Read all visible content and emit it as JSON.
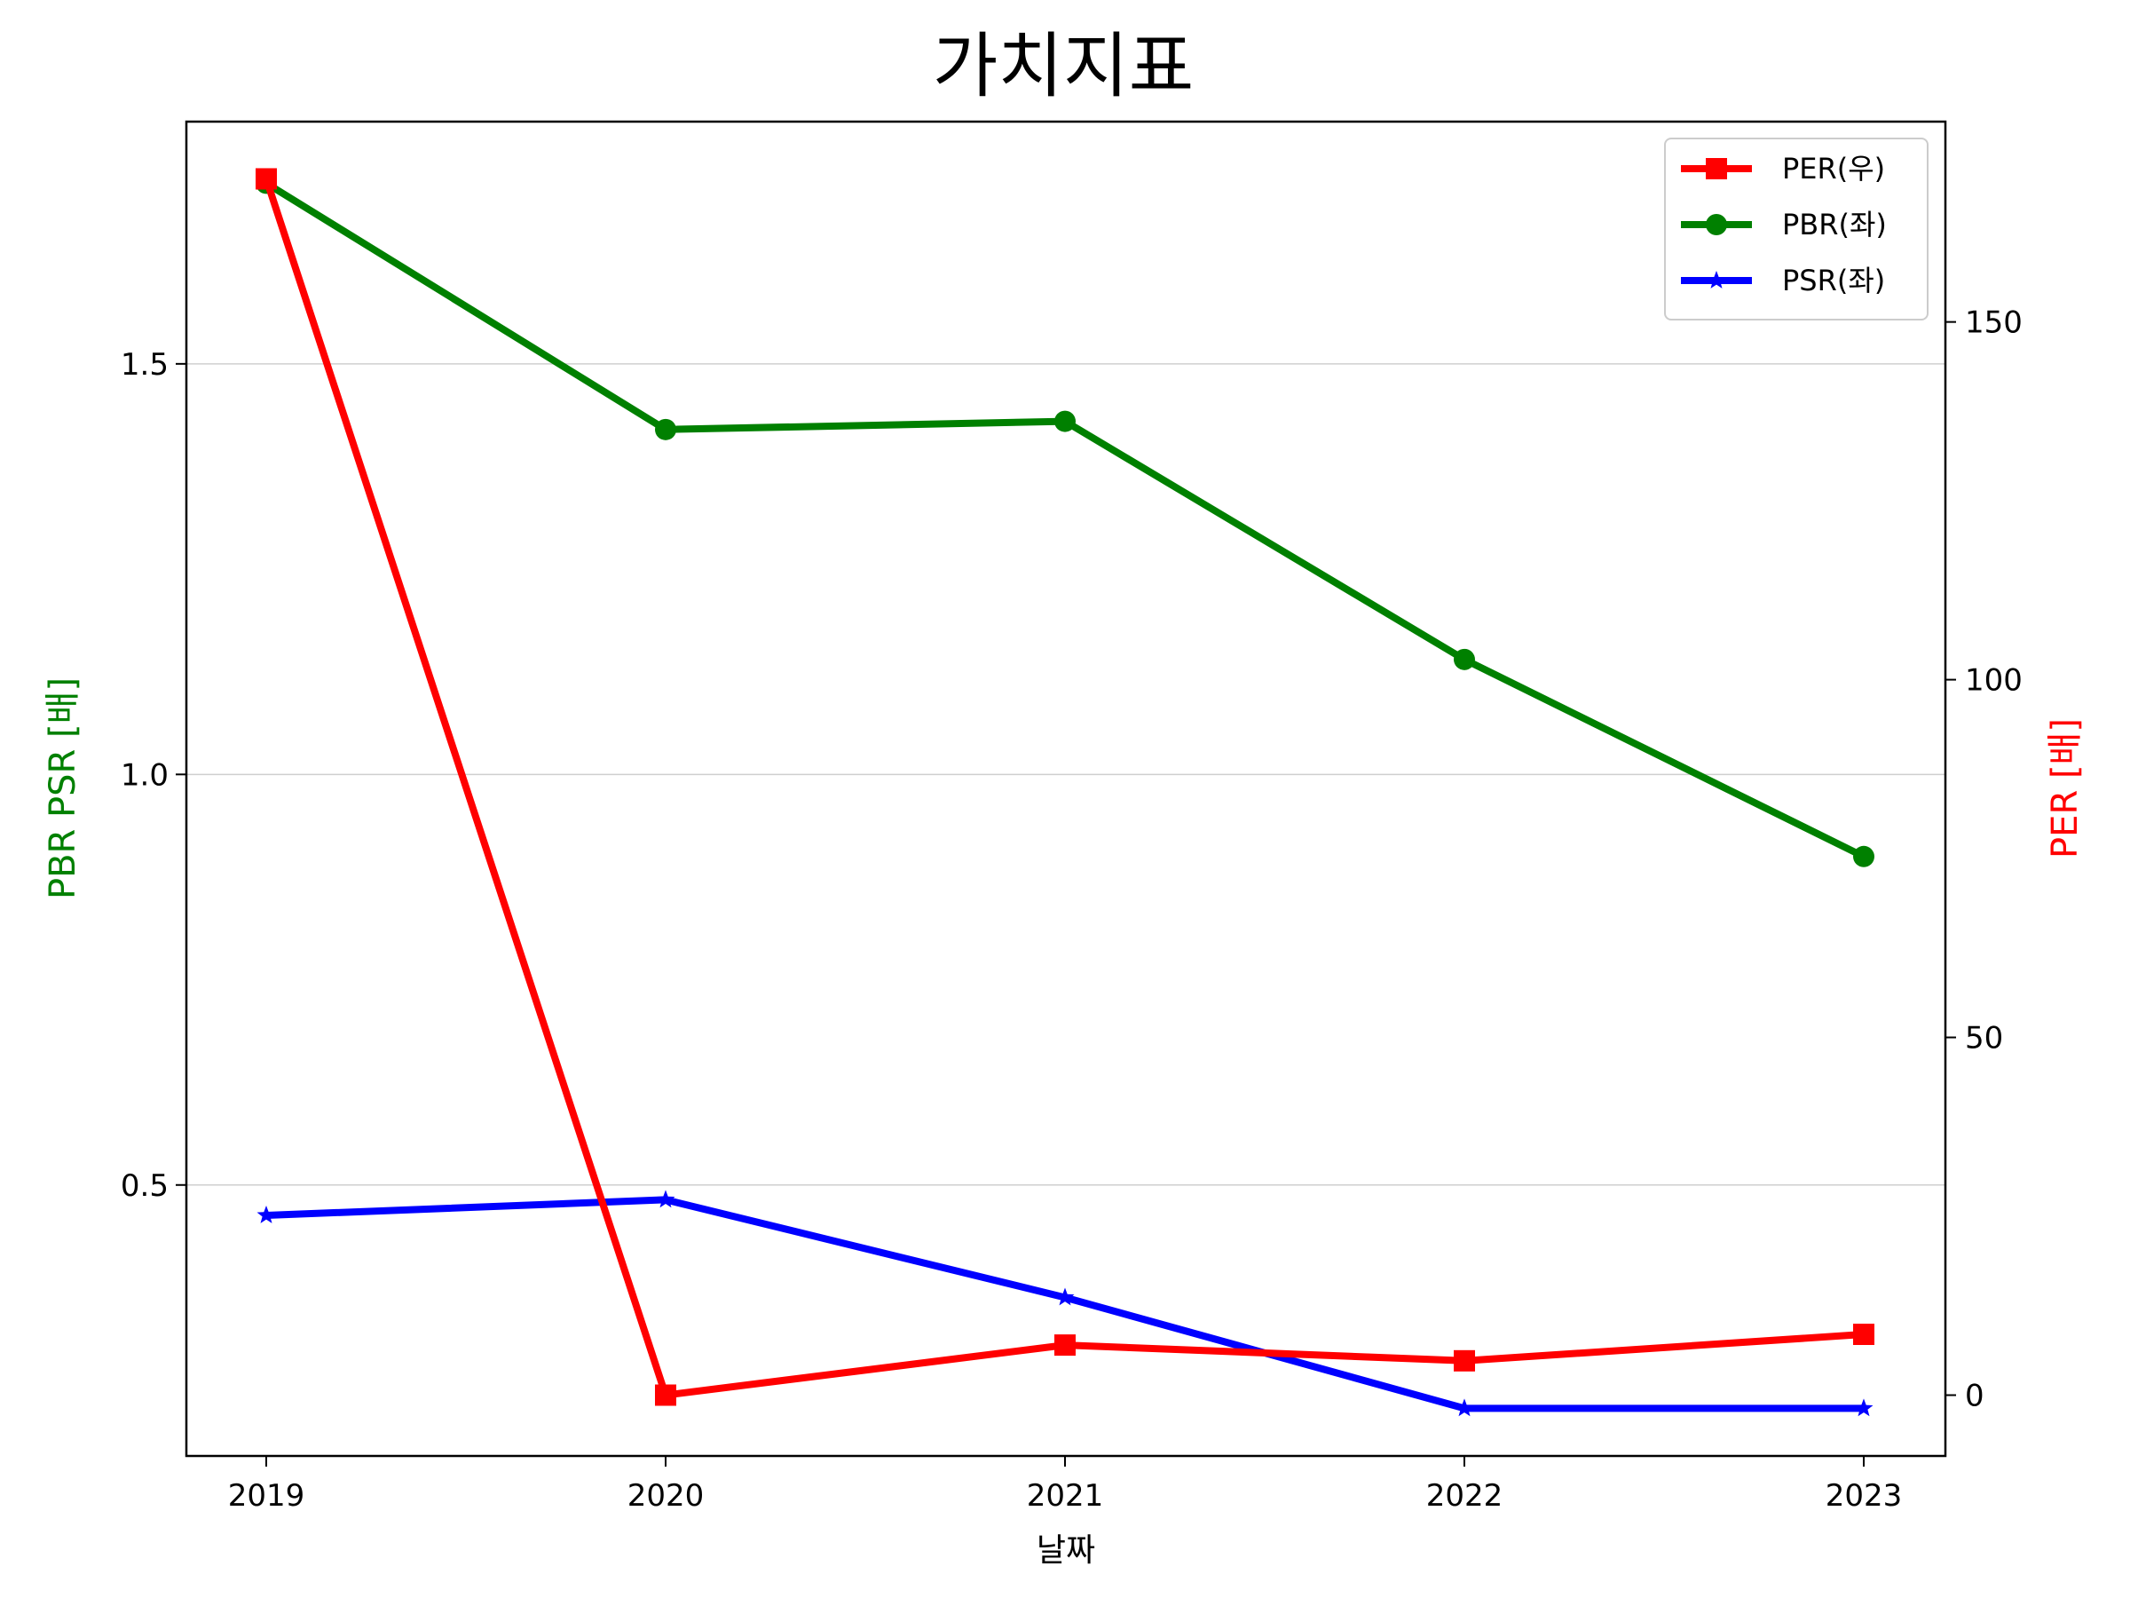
{
  "chart_data": {
    "type": "line",
    "title": "가치지표",
    "xlabel": "날짜",
    "ylabel_left": "PBR PSR [배]",
    "ylabel_right": "PER [배]",
    "ylabel_left_color": "#008000",
    "ylabel_right_color": "#ff0000",
    "categories": [
      "2019",
      "2020",
      "2021",
      "2022",
      "2023"
    ],
    "ylim_left": [
      0.17,
      1.795
    ],
    "ylim_right": [
      -8.5,
      178
    ],
    "yticks_left": [
      0.5,
      1.0,
      1.5
    ],
    "yticks_left_labels": [
      "0.5",
      "1.0",
      "1.5"
    ],
    "yticks_right": [
      0,
      50,
      100,
      150
    ],
    "yticks_right_labels": [
      "0",
      "50",
      "100",
      "150"
    ],
    "grid": "horizontal",
    "legend_position": "top-right",
    "series": [
      {
        "name": "PER(우)",
        "axis": "right",
        "color": "#ff0000",
        "marker": "square",
        "values": [
          170,
          0,
          7,
          4.8,
          8.5
        ]
      },
      {
        "name": "PBR(좌)",
        "axis": "left",
        "color": "#008000",
        "marker": "circle",
        "values": [
          1.72,
          1.42,
          1.43,
          1.14,
          0.9
        ]
      },
      {
        "name": "PSR(좌)",
        "axis": "left",
        "color": "#0000ff",
        "marker": "star",
        "values": [
          0.463,
          0.482,
          0.363,
          0.228,
          0.228
        ]
      }
    ]
  }
}
